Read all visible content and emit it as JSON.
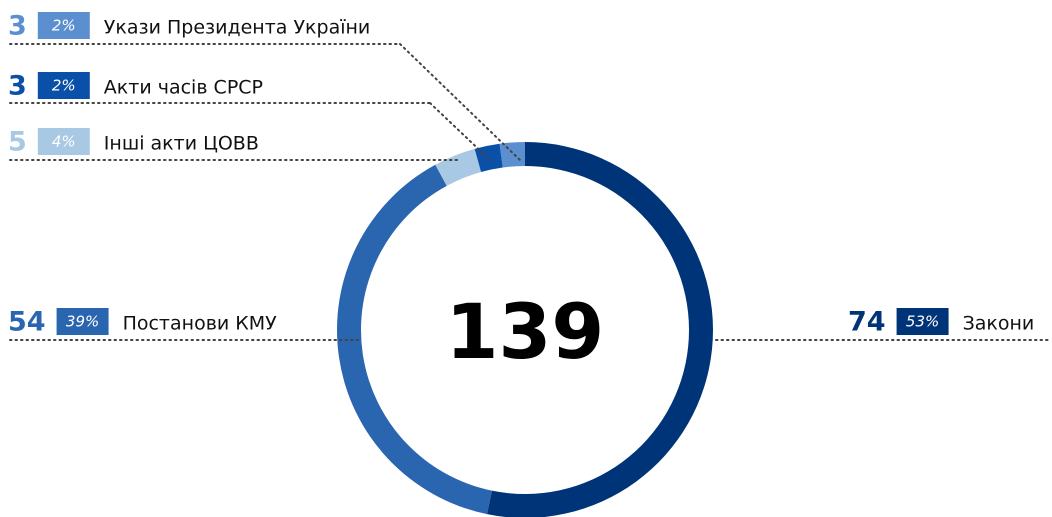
{
  "chart_data": {
    "type": "donut",
    "total": 139,
    "categories": [
      "Закони",
      "Постанови КМУ",
      "Інші акти ЦОВВ",
      "Акти часів СРСР",
      "Укази Президента України"
    ],
    "values": [
      74,
      54,
      5,
      3,
      3
    ],
    "shares": [
      "53%",
      "39%",
      "4%",
      "2%",
      "2%"
    ],
    "colors": [
      "#003478",
      "#2a65b0",
      "#a8c8e4",
      "#0a4fa8",
      "#5b8fd0"
    ]
  }
}
